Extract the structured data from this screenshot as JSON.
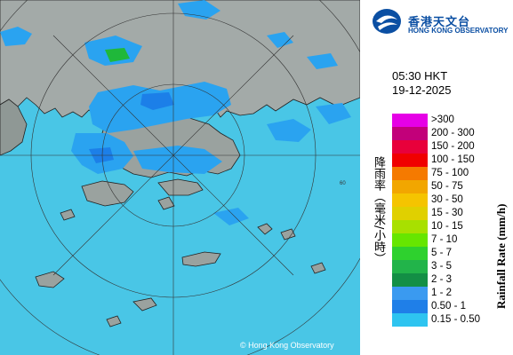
{
  "map": {
    "copyright": "© Hong Kong Observatory",
    "ring_label": "60",
    "colors": {
      "sea": "#49c6e6",
      "land": "#a3aaa8",
      "rain_light": "#2aa3f0",
      "rain_mid": "#1c7fe8",
      "rain_green": "#1fb83a"
    }
  },
  "logo": {
    "cn": "香港天文台",
    "en": "HONG KONG OBSERVATORY",
    "icon": "hko-logo-icon"
  },
  "time": "05:30 HKT",
  "date": "19-12-2025",
  "legend": {
    "title_cn": "降雨率（毫米/小時）",
    "title_en": "Rainfall Rate (mm/h)",
    "items": [
      {
        "label": ">300",
        "color": "#e600e6"
      },
      {
        "label": "200 - 300",
        "color": "#c2007a"
      },
      {
        "label": "150 - 200",
        "color": "#e8003b"
      },
      {
        "label": "100 - 150",
        "color": "#f00000"
      },
      {
        "label": "75 - 100",
        "color": "#f57a00"
      },
      {
        "label": "50 - 75",
        "color": "#f2a600"
      },
      {
        "label": "30 - 50",
        "color": "#f5c400"
      },
      {
        "label": "15 - 30",
        "color": "#e0d000"
      },
      {
        "label": "10 - 15",
        "color": "#a8e000"
      },
      {
        "label": "7 - 10",
        "color": "#66e600"
      },
      {
        "label": "5 - 7",
        "color": "#2ed12e"
      },
      {
        "label": "3 - 5",
        "color": "#22b44a"
      },
      {
        "label": "2 - 3",
        "color": "#138f45"
      },
      {
        "label": "1 - 2",
        "color": "#3a9af0"
      },
      {
        "label": "0.50 - 1",
        "color": "#1f7fe8"
      },
      {
        "label": "0.15 - 0.50",
        "color": "#2ec4f0"
      }
    ]
  }
}
